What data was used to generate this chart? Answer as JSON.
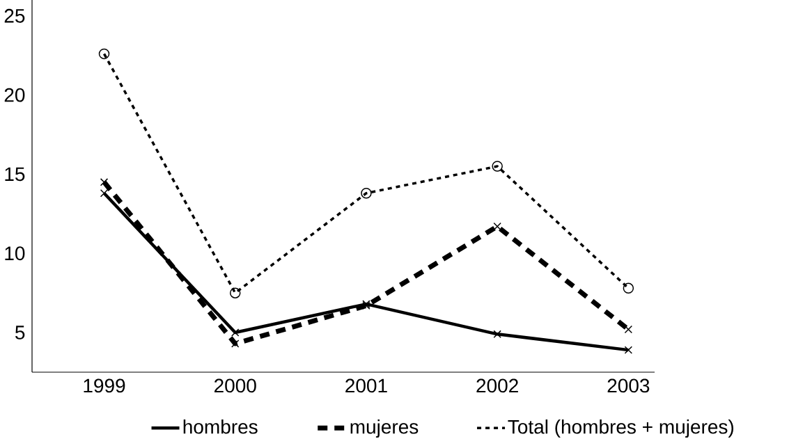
{
  "chart_data": {
    "type": "line",
    "categories": [
      "1999",
      "2000",
      "2001",
      "2002",
      "2003"
    ],
    "series": [
      {
        "name": "hombres",
        "color": "#000000",
        "line_style": "solid",
        "marker": "cross",
        "values": [
          13.8,
          5.0,
          6.8,
          4.9,
          3.9
        ]
      },
      {
        "name": "mujeres",
        "color": "#000000",
        "line_style": "dashed",
        "marker": "cross",
        "values": [
          14.5,
          4.3,
          6.7,
          11.7,
          5.2
        ]
      },
      {
        "name": "Total (hombres + mujeres)",
        "color": "#000000",
        "line_style": "dotted",
        "marker": "circle",
        "values": [
          22.6,
          7.5,
          13.8,
          15.5,
          7.8
        ]
      }
    ],
    "ylim": [
      2.5,
      26
    ],
    "yticks": [
      5,
      10,
      15,
      20,
      25
    ],
    "grid": false,
    "legend": "bottom"
  }
}
